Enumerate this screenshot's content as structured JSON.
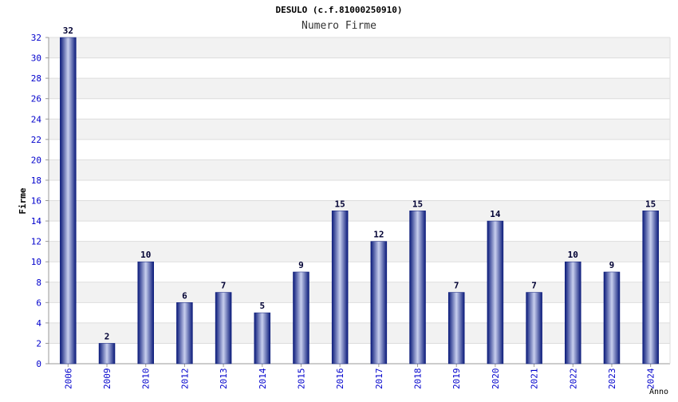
{
  "chart_data": {
    "type": "bar",
    "title": "DESULO (c.f.81000250910)",
    "subtitle": "Numero Firme",
    "xlabel": "Anno",
    "ylabel": "Firme",
    "categories": [
      "2006",
      "2009",
      "2010",
      "2012",
      "2013",
      "2014",
      "2015",
      "2016",
      "2017",
      "2018",
      "2019",
      "2020",
      "2021",
      "2022",
      "2023",
      "2024"
    ],
    "values": [
      32,
      2,
      10,
      6,
      7,
      5,
      9,
      15,
      12,
      15,
      7,
      14,
      7,
      10,
      9,
      15
    ],
    "ylim": [
      0,
      32
    ],
    "yticks": [
      0,
      2,
      4,
      6,
      8,
      10,
      12,
      14,
      16,
      18,
      20,
      22,
      24,
      26,
      28,
      30,
      32
    ],
    "grid": true,
    "legend": "none",
    "colors": {
      "bar_dark": "#0a1a7a",
      "bar_light": "#c8cfee",
      "tick_label": "#0000cc",
      "data_label": "#000033",
      "band": "#f2f2f2",
      "axis": "#999999"
    }
  }
}
